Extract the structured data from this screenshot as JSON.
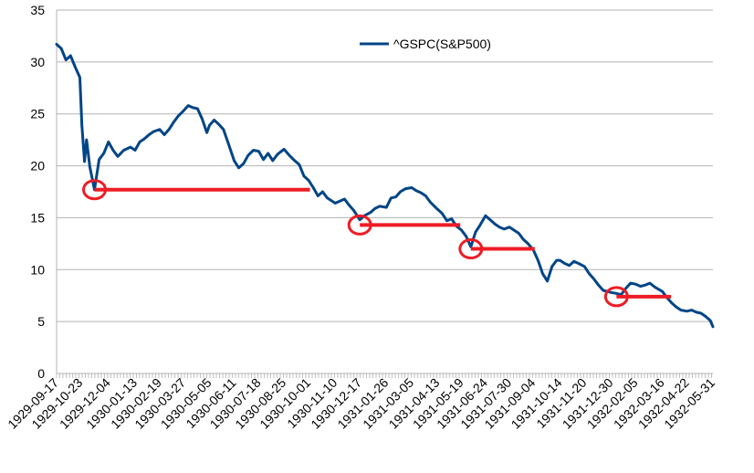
{
  "chart_data": {
    "type": "line",
    "title": "",
    "xlabel": "",
    "ylabel": "",
    "ylim": [
      0,
      35
    ],
    "y_ticks": [
      0,
      5,
      10,
      15,
      20,
      25,
      30,
      35
    ],
    "x_range": [
      "1929-09-17",
      "1932-05-31"
    ],
    "x_tick_labels": [
      "1929-09-17",
      "1929-10-23",
      "1929-12-04",
      "1930-01-13",
      "1930-02-19",
      "1930-03-27",
      "1930-05-05",
      "1930-06-11",
      "1930-07-18",
      "1930-08-25",
      "1930-10-01",
      "1930-11-10",
      "1930-12-17",
      "1931-01-26",
      "1931-03-05",
      "1931-04-13",
      "1931-05-19",
      "1931-06-24",
      "1931-07-30",
      "1931-09-04",
      "1931-10-14",
      "1931-11-20",
      "1931-12-30",
      "1932-02-05",
      "1932-03-16",
      "1932-04-22",
      "1932-05-31"
    ],
    "grid": true,
    "legend_position": "top-right",
    "series": [
      {
        "name": "^GSPC(S&P500)",
        "color": "#004586",
        "x": [
          "1929-09-17",
          "1929-09-24",
          "1929-10-01",
          "1929-10-08",
          "1929-10-15",
          "1929-10-22",
          "1929-10-25",
          "1929-10-29",
          "1929-11-01",
          "1929-11-06",
          "1929-11-13",
          "1929-11-20",
          "1929-11-27",
          "1929-12-04",
          "1929-12-11",
          "1929-12-18",
          "1929-12-27",
          "1930-01-06",
          "1930-01-13",
          "1930-01-20",
          "1930-01-27",
          "1930-02-03",
          "1930-02-10",
          "1930-02-19",
          "1930-02-26",
          "1930-03-05",
          "1930-03-12",
          "1930-03-19",
          "1930-03-27",
          "1930-04-03",
          "1930-04-10",
          "1930-04-17",
          "1930-04-24",
          "1930-05-01",
          "1930-05-05",
          "1930-05-12",
          "1930-05-19",
          "1930-05-26",
          "1930-06-03",
          "1930-06-11",
          "1930-06-18",
          "1930-06-25",
          "1930-07-02",
          "1930-07-10",
          "1930-07-18",
          "1930-07-25",
          "1930-08-01",
          "1930-08-08",
          "1930-08-15",
          "1930-08-25",
          "1930-09-02",
          "1930-09-10",
          "1930-09-17",
          "1930-09-24",
          "1930-10-01",
          "1930-10-08",
          "1930-10-15",
          "1930-10-22",
          "1930-10-29",
          "1930-11-10",
          "1930-11-17",
          "1930-11-24",
          "1930-12-01",
          "1930-12-08",
          "1930-12-17",
          "1930-12-24",
          "1931-01-02",
          "1931-01-09",
          "1931-01-16",
          "1931-01-26",
          "1931-02-02",
          "1931-02-09",
          "1931-02-16",
          "1931-02-24",
          "1931-03-05",
          "1931-03-12",
          "1931-03-19",
          "1931-03-26",
          "1931-04-02",
          "1931-04-13",
          "1931-04-20",
          "1931-04-27",
          "1931-05-04",
          "1931-05-11",
          "1931-05-19",
          "1931-05-26",
          "1931-06-02",
          "1931-06-09",
          "1931-06-16",
          "1931-06-24",
          "1931-07-01",
          "1931-07-08",
          "1931-07-15",
          "1931-07-22",
          "1931-07-30",
          "1931-08-06",
          "1931-08-13",
          "1931-08-20",
          "1931-08-27",
          "1931-09-04",
          "1931-09-11",
          "1931-09-18",
          "1931-09-25",
          "1931-10-02",
          "1931-10-09",
          "1931-10-14",
          "1931-10-21",
          "1931-10-28",
          "1931-11-04",
          "1931-11-11",
          "1931-11-20",
          "1931-11-27",
          "1931-12-04",
          "1931-12-11",
          "1931-12-18",
          "1931-12-30",
          "1932-01-07",
          "1932-01-14",
          "1932-01-21",
          "1932-01-28",
          "1932-02-05",
          "1932-02-12",
          "1932-02-19",
          "1932-02-26",
          "1932-03-05",
          "1932-03-16",
          "1932-03-23",
          "1932-03-30",
          "1932-04-06",
          "1932-04-13",
          "1932-04-22",
          "1932-04-29",
          "1932-05-06",
          "1932-05-13",
          "1932-05-20",
          "1932-05-27",
          "1932-05-31"
        ],
        "y": [
          31.7,
          31.3,
          30.2,
          30.6,
          29.5,
          28.5,
          23.9,
          20.4,
          22.5,
          19.9,
          17.7,
          20.6,
          21.2,
          22.3,
          21.5,
          20.9,
          21.5,
          21.8,
          21.5,
          22.3,
          22.6,
          23.0,
          23.3,
          23.5,
          23.0,
          23.5,
          24.2,
          24.8,
          25.3,
          25.8,
          25.6,
          25.5,
          24.5,
          23.2,
          23.9,
          24.4,
          24.0,
          23.5,
          22.0,
          20.5,
          19.8,
          20.2,
          21.0,
          21.5,
          21.4,
          20.6,
          21.2,
          20.5,
          21.1,
          21.6,
          21.0,
          20.5,
          20.1,
          19.0,
          18.6,
          17.9,
          17.1,
          17.5,
          16.9,
          16.4,
          16.6,
          16.8,
          16.2,
          15.7,
          14.8,
          15.2,
          15.5,
          15.9,
          16.1,
          16.0,
          16.9,
          17.0,
          17.5,
          17.8,
          17.9,
          17.6,
          17.4,
          17.1,
          16.5,
          15.8,
          15.4,
          14.7,
          14.9,
          14.2,
          13.8,
          13.2,
          12.2,
          13.6,
          14.3,
          15.2,
          14.8,
          14.4,
          14.1,
          13.9,
          14.1,
          13.8,
          13.5,
          12.9,
          12.5,
          11.9,
          10.9,
          9.6,
          8.9,
          10.3,
          10.9,
          10.9,
          10.6,
          10.4,
          10.8,
          10.6,
          10.3,
          9.6,
          9.1,
          8.5,
          8.0,
          7.8,
          7.7,
          7.6,
          8.2,
          8.7,
          8.6,
          8.4,
          8.5,
          8.7,
          8.3,
          7.9,
          7.3,
          6.8,
          6.4,
          6.1,
          6.0,
          6.1,
          5.9,
          5.8,
          5.5,
          5.1,
          4.5
        ]
      }
    ],
    "annotations": [
      {
        "type": "circle_with_line",
        "color": "#ee1c25",
        "start_x": "1929-11-13",
        "end_x": "1930-10-03",
        "y": 17.7
      },
      {
        "type": "circle_with_line",
        "color": "#ee1c25",
        "start_x": "1930-12-17",
        "end_x": "1931-05-17",
        "y": 14.3
      },
      {
        "type": "circle_with_line",
        "color": "#ee1c25",
        "start_x": "1931-06-02",
        "end_x": "1931-09-06",
        "y": 12.0
      },
      {
        "type": "circle_with_line",
        "color": "#ee1c25",
        "start_x": "1932-01-07",
        "end_x": "1932-03-29",
        "y": 7.4
      }
    ]
  }
}
